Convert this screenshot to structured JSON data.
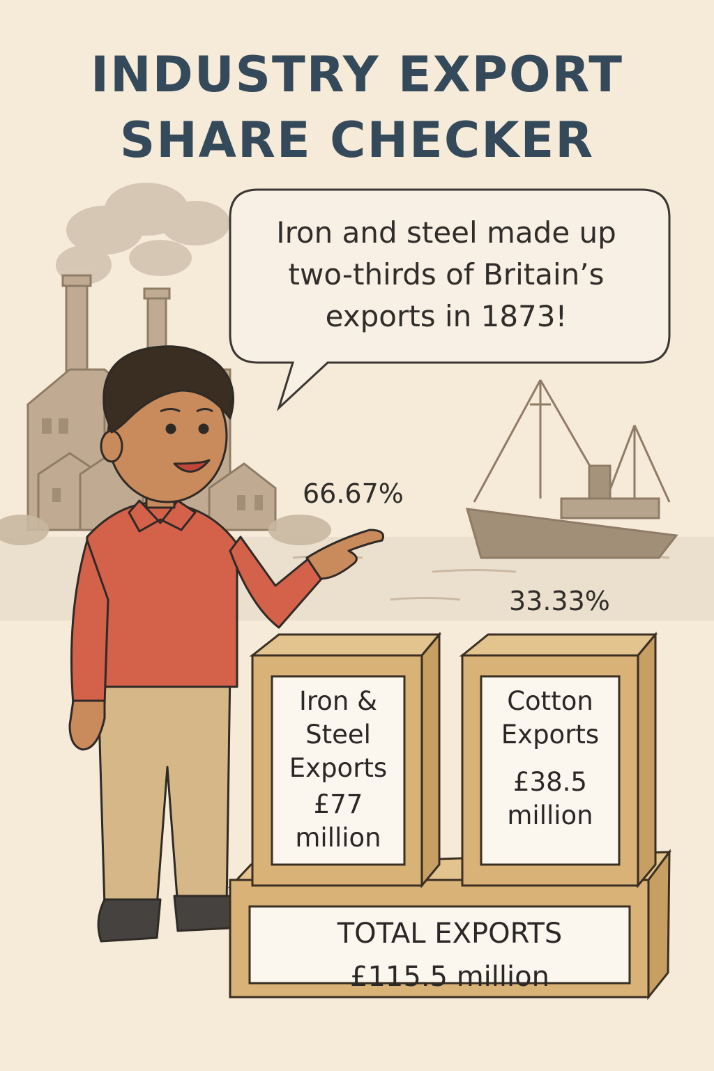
{
  "title": {
    "line1": "INDUSTRY EXPORT",
    "line2": "SHARE CHECKER"
  },
  "speech_bubble": {
    "line1": "Iron and steel made up",
    "line2": "two-thirds of Britain’s",
    "line3": "exports in 1873!"
  },
  "shares": {
    "iron_steel_pct": "66.67%",
    "cotton_pct": "33.33%"
  },
  "crates": {
    "iron_steel": {
      "line1": "Iron &",
      "line2": "Steel",
      "line3": "Exports",
      "amount_line1": "£77",
      "amount_line2": "million"
    },
    "cotton": {
      "line1": "Cotton",
      "line2": "Exports",
      "amount_line1": "£38.5",
      "amount_line2": "million"
    },
    "total": {
      "line1": "TOTAL EXPORTS",
      "line2": "£115.5 million"
    }
  },
  "colors": {
    "background": "#f6ead8",
    "title": "#34495a",
    "sweater": "#d4614a",
    "trousers": "#d6b788",
    "wood": "#d9b277",
    "factory": "#b9a48c"
  }
}
